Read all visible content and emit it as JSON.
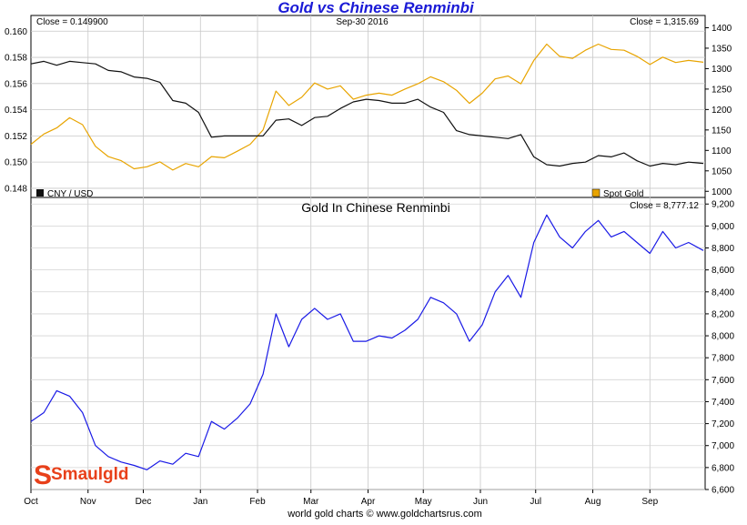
{
  "chart_data": [
    {
      "type": "line",
      "title": "Gold vs Chinese Renminbi",
      "date_label": "Sep-30  2016",
      "close_left": "Close = 0.149900",
      "close_right": "Close = 1,315.69",
      "legend": [
        {
          "label": "CNY / USD",
          "color": "#111111"
        },
        {
          "label": "Spot Gold",
          "color": "#e8a400"
        }
      ],
      "x_ticks": [
        "Oct",
        "Nov",
        "Dec",
        "Jan",
        "Feb",
        "Mar",
        "Apr",
        "May",
        "Jun",
        "Jul",
        "Aug",
        "Sep"
      ],
      "left_axis": {
        "ylim": [
          0.1473,
          0.1612
        ],
        "ticks": [
          "0.148",
          "0.150",
          "0.152",
          "0.154",
          "0.156",
          "0.158",
          "0.160"
        ]
      },
      "right_axis": {
        "ylim": [
          985,
          1430
        ],
        "ticks": [
          "1000",
          "1050",
          "1100",
          "1150",
          "1200",
          "1250",
          "1300",
          "1350",
          "1400"
        ]
      },
      "grid": true,
      "series": [
        {
          "name": "CNY / USD",
          "axis": "left",
          "color": "#111111",
          "x": [
            "2015-10-01",
            "2015-10-08",
            "2015-10-15",
            "2015-10-22",
            "2015-10-29",
            "2015-11-05",
            "2015-11-12",
            "2015-11-19",
            "2015-11-26",
            "2015-12-03",
            "2015-12-10",
            "2015-12-17",
            "2015-12-24",
            "2015-12-31",
            "2016-01-07",
            "2016-01-14",
            "2016-01-21",
            "2016-01-28",
            "2016-02-04",
            "2016-02-11",
            "2016-02-18",
            "2016-02-25",
            "2016-03-03",
            "2016-03-10",
            "2016-03-17",
            "2016-03-24",
            "2016-03-31",
            "2016-04-07",
            "2016-04-14",
            "2016-04-21",
            "2016-04-28",
            "2016-05-05",
            "2016-05-12",
            "2016-05-19",
            "2016-05-26",
            "2016-06-02",
            "2016-06-09",
            "2016-06-16",
            "2016-06-23",
            "2016-06-30",
            "2016-07-07",
            "2016-07-14",
            "2016-07-21",
            "2016-07-28",
            "2016-08-04",
            "2016-08-11",
            "2016-08-18",
            "2016-08-25",
            "2016-09-01",
            "2016-09-08",
            "2016-09-15",
            "2016-09-22",
            "2016-09-30"
          ],
          "values": [
            0.1575,
            0.1577,
            0.1574,
            0.1577,
            0.1576,
            0.1575,
            0.157,
            0.1569,
            0.1565,
            0.1564,
            0.1561,
            0.1547,
            0.1545,
            0.1538,
            0.1519,
            0.152,
            0.152,
            0.152,
            0.152,
            0.1532,
            0.1533,
            0.1528,
            0.1534,
            0.1535,
            0.1541,
            0.1546,
            0.1548,
            0.1547,
            0.1545,
            0.1545,
            0.1548,
            0.1542,
            0.1538,
            0.1524,
            0.1521,
            0.152,
            0.1519,
            0.1518,
            0.1521,
            0.1504,
            0.1498,
            0.1497,
            0.1499,
            0.15,
            0.1505,
            0.1504,
            0.1507,
            0.1501,
            0.1497,
            0.1499,
            0.1498,
            0.15,
            0.1499
          ]
        },
        {
          "name": "Spot Gold",
          "axis": "right",
          "color": "#e8a400",
          "x": [
            "2015-10-01",
            "2015-10-08",
            "2015-10-15",
            "2015-10-22",
            "2015-10-29",
            "2015-11-05",
            "2015-11-12",
            "2015-11-19",
            "2015-11-26",
            "2015-12-03",
            "2015-12-10",
            "2015-12-17",
            "2015-12-24",
            "2015-12-31",
            "2016-01-07",
            "2016-01-14",
            "2016-01-21",
            "2016-01-28",
            "2016-02-04",
            "2016-02-11",
            "2016-02-18",
            "2016-02-25",
            "2016-03-03",
            "2016-03-10",
            "2016-03-17",
            "2016-03-24",
            "2016-03-31",
            "2016-04-07",
            "2016-04-14",
            "2016-04-21",
            "2016-04-28",
            "2016-05-05",
            "2016-05-12",
            "2016-05-19",
            "2016-05-26",
            "2016-06-02",
            "2016-06-09",
            "2016-06-16",
            "2016-06-23",
            "2016-06-30",
            "2016-07-07",
            "2016-07-14",
            "2016-07-21",
            "2016-07-28",
            "2016-08-04",
            "2016-08-11",
            "2016-08-18",
            "2016-08-25",
            "2016-09-01",
            "2016-09-08",
            "2016-09-15",
            "2016-09-22",
            "2016-09-30"
          ],
          "values": [
            1115,
            1140,
            1155,
            1180,
            1163,
            1110,
            1085,
            1075,
            1055,
            1060,
            1072,
            1052,
            1068,
            1060,
            1085,
            1082,
            1098,
            1115,
            1150,
            1245,
            1210,
            1230,
            1265,
            1250,
            1258,
            1225,
            1235,
            1240,
            1235,
            1250,
            1263,
            1280,
            1268,
            1247,
            1215,
            1240,
            1275,
            1282,
            1263,
            1320,
            1360,
            1330,
            1325,
            1345,
            1360,
            1347,
            1345,
            1330,
            1310,
            1328,
            1315,
            1320,
            1315.69
          ]
        }
      ]
    },
    {
      "type": "line",
      "title": "Gold In Chinese Renminbi",
      "close_right": "Close = 8,777.12",
      "x_ticks": [
        "Oct",
        "Nov",
        "Dec",
        "Jan",
        "Feb",
        "Mar",
        "Apr",
        "May",
        "Jun",
        "Jul",
        "Aug",
        "Sep"
      ],
      "right_axis": {
        "ylim": [
          6600,
          9260
        ],
        "ticks": [
          "6,600",
          "6,800",
          "7,000",
          "7,200",
          "7,400",
          "7,600",
          "7,800",
          "8,000",
          "8,200",
          "8,400",
          "8,600",
          "8,800",
          "9,000",
          "9,200"
        ]
      },
      "grid": true,
      "series": [
        {
          "name": "Gold In Chinese Renminbi",
          "axis": "right",
          "color": "#1a1ae6",
          "x": [
            "2015-10-01",
            "2015-10-08",
            "2015-10-15",
            "2015-10-22",
            "2015-10-29",
            "2015-11-05",
            "2015-11-12",
            "2015-11-19",
            "2015-11-26",
            "2015-12-03",
            "2015-12-10",
            "2015-12-17",
            "2015-12-24",
            "2015-12-31",
            "2016-01-07",
            "2016-01-14",
            "2016-01-21",
            "2016-01-28",
            "2016-02-04",
            "2016-02-11",
            "2016-02-18",
            "2016-02-25",
            "2016-03-03",
            "2016-03-10",
            "2016-03-17",
            "2016-03-24",
            "2016-03-31",
            "2016-04-07",
            "2016-04-14",
            "2016-04-21",
            "2016-04-28",
            "2016-05-05",
            "2016-05-12",
            "2016-05-19",
            "2016-05-26",
            "2016-06-02",
            "2016-06-09",
            "2016-06-16",
            "2016-06-23",
            "2016-06-30",
            "2016-07-07",
            "2016-07-14",
            "2016-07-21",
            "2016-07-28",
            "2016-08-04",
            "2016-08-11",
            "2016-08-18",
            "2016-08-25",
            "2016-09-01",
            "2016-09-08",
            "2016-09-15",
            "2016-09-22",
            "2016-09-30"
          ],
          "values": [
            7220,
            7300,
            7500,
            7450,
            7300,
            7000,
            6900,
            6850,
            6820,
            6780,
            6860,
            6830,
            6930,
            6900,
            7220,
            7150,
            7250,
            7380,
            7650,
            8200,
            7900,
            8150,
            8250,
            8150,
            8200,
            7950,
            7950,
            8000,
            7980,
            8050,
            8150,
            8350,
            8300,
            8200,
            7950,
            8100,
            8400,
            8550,
            8350,
            8850,
            9100,
            8900,
            8800,
            8950,
            9050,
            8900,
            8950,
            8850,
            8750,
            8950,
            8800,
            8850,
            8777.12
          ]
        }
      ],
      "watermark": "Smaulgld",
      "footer": "world gold charts © www.goldchartsrus.com"
    }
  ]
}
